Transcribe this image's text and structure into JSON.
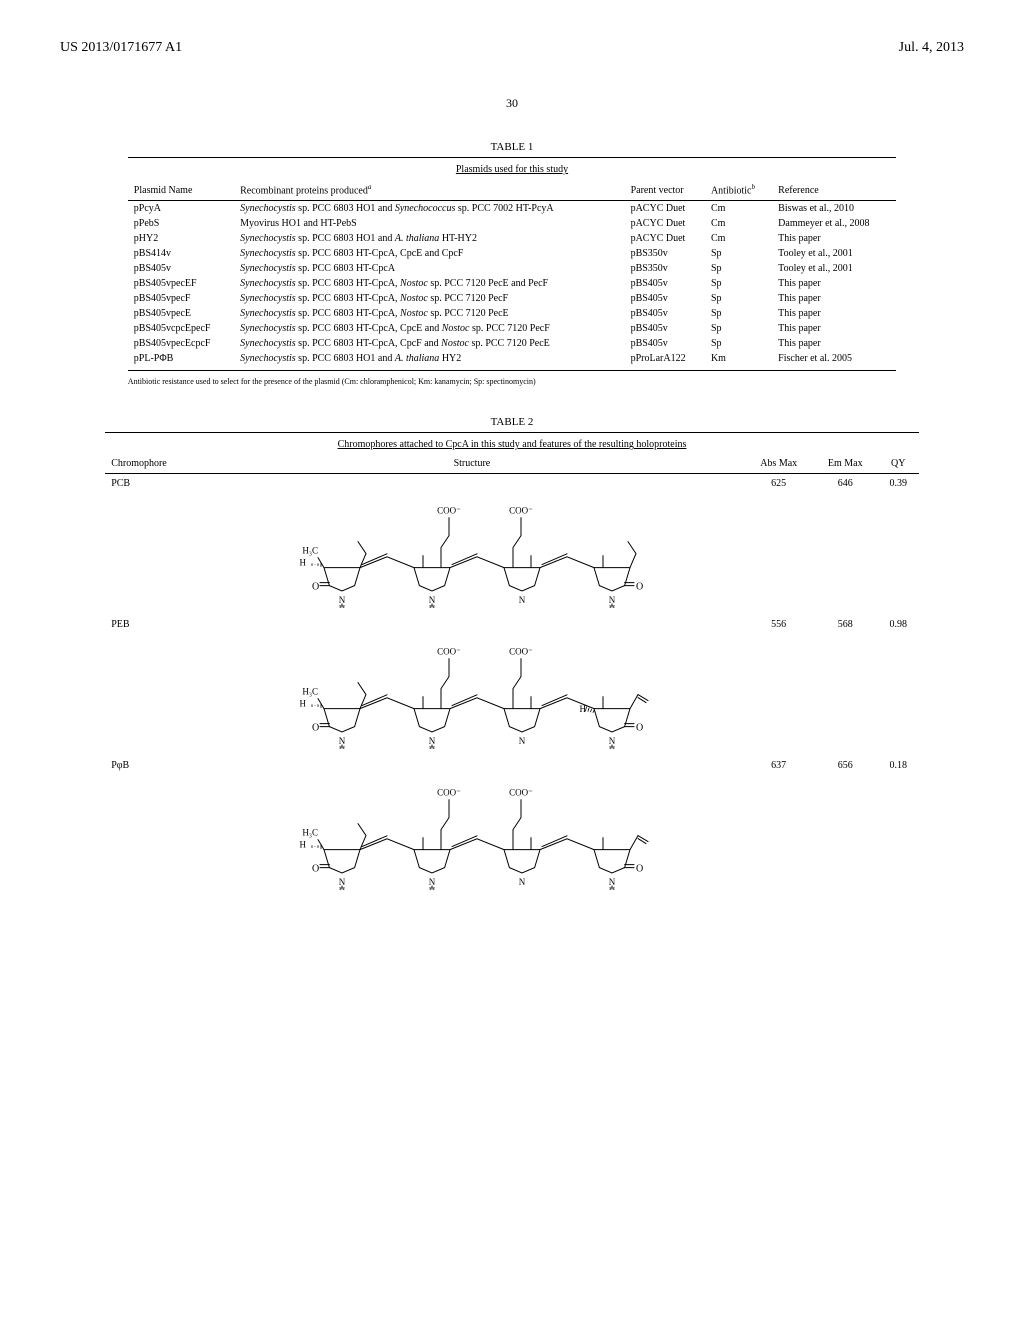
{
  "header": {
    "patent_number": "US 2013/0171677 A1",
    "date": "Jul. 4, 2013",
    "page_number": "30"
  },
  "table1": {
    "caption": "TABLE 1",
    "subtitle": "Plasmids used for this study",
    "columns": [
      "Plasmid Name",
      "Recombinant proteins produced",
      "Parent vector",
      "Antibiotic",
      "Reference"
    ],
    "col_sup": {
      "1": "a",
      "3": "b"
    },
    "rows": [
      {
        "name": "pPcyA",
        "proteins": "Synechocystis sp. PCC 6803 HO1 and Synechococcus sp. PCC 7002 HT-PcyA",
        "vector": "pACYC Duet",
        "antibiotic": "Cm",
        "reference": "Biswas et al., 2010"
      },
      {
        "name": "pPebS",
        "proteins": "Myovirus HO1 and HT-PebS",
        "vector": "pACYC Duet",
        "antibiotic": "Cm",
        "reference": "Dammeyer et al., 2008"
      },
      {
        "name": "pHY2",
        "proteins": "Synechocystis sp. PCC 6803 HO1 and A. thaliana HT-HY2",
        "vector": "pACYC Duet",
        "antibiotic": "Cm",
        "reference": "This paper"
      },
      {
        "name": "pBS414v",
        "proteins": "Synechocystis sp. PCC 6803 HT-CpcA, CpcE and CpcF",
        "vector": "pBS350v",
        "antibiotic": "Sp",
        "reference": "Tooley et al., 2001"
      },
      {
        "name": "pBS405v",
        "proteins": "Synechocystis sp. PCC 6803 HT-CpcA",
        "vector": "pBS350v",
        "antibiotic": "Sp",
        "reference": "Tooley et al., 2001"
      },
      {
        "name": "pBS405vpecEF",
        "proteins": "Synechocystis sp. PCC 6803 HT-CpcA, Nostoc sp. PCC 7120 PecE and PecF",
        "vector": "pBS405v",
        "antibiotic": "Sp",
        "reference": "This paper"
      },
      {
        "name": "pBS405vpecF",
        "proteins": "Synechocystis sp. PCC 6803 HT-CpcA, Nostoc sp. PCC 7120 PecF",
        "vector": "pBS405v",
        "antibiotic": "Sp",
        "reference": "This paper"
      },
      {
        "name": "pBS405vpecE",
        "proteins": "Synechocystis sp. PCC 6803 HT-CpcA, Nostoc sp. PCC 7120 PecE",
        "vector": "pBS405v",
        "antibiotic": "Sp",
        "reference": "This paper"
      },
      {
        "name": "pBS405vcpcEpecF",
        "proteins": "Synechocystis sp. PCC 6803 HT-CpcA, CpcE and Nostoc sp. PCC 7120 PecF",
        "vector": "pBS405v",
        "antibiotic": "Sp",
        "reference": "This paper"
      },
      {
        "name": "pBS405vpecEcpcF",
        "proteins": "Synechocystis sp. PCC 6803 HT-CpcA, CpcF and Nostoc sp. PCC 7120 PecE",
        "vector": "pBS405v",
        "antibiotic": "Sp",
        "reference": "This paper"
      },
      {
        "name": "pPL-PΦB",
        "proteins": "Synechocystis sp. PCC 6803 HO1 and A. thaliana HY2",
        "vector": "pProLarA122",
        "antibiotic": "Km",
        "reference": "Fischer et al. 2005"
      }
    ],
    "footnote": "Antibiotic resistance used to select for the presence of the plasmid (Cm: chloramphenicol; Km: kanamycin; Sp: spectinomycin)"
  },
  "table2": {
    "caption": "TABLE 2",
    "subtitle": "Chromophores attached to CpcA in this study and features of the resulting holoproteins",
    "columns": [
      "Chromophore",
      "Structure",
      "Abs Max",
      "Em Max",
      "QY"
    ],
    "rows": [
      {
        "chromophore": "PCB",
        "abs": "625",
        "em": "646",
        "qy": "0.39",
        "ring_d_double": true,
        "ring_d_vinyl": false
      },
      {
        "chromophore": "PEB",
        "abs": "556",
        "em": "568",
        "qy": "0.98",
        "ring_d_double": false,
        "ring_d_vinyl": true
      },
      {
        "chromophore": "PφB",
        "abs": "637",
        "em": "656",
        "qy": "0.18",
        "ring_d_double": true,
        "ring_d_vinyl": true
      }
    ]
  },
  "style": {
    "font_family": "Times New Roman",
    "text_color": "#000000",
    "background_color": "#ffffff",
    "rule_color": "#000000",
    "body_fontsize": 11,
    "table_fontsize": 10,
    "footnote_fontsize": 8,
    "header_fontsize": 14
  }
}
